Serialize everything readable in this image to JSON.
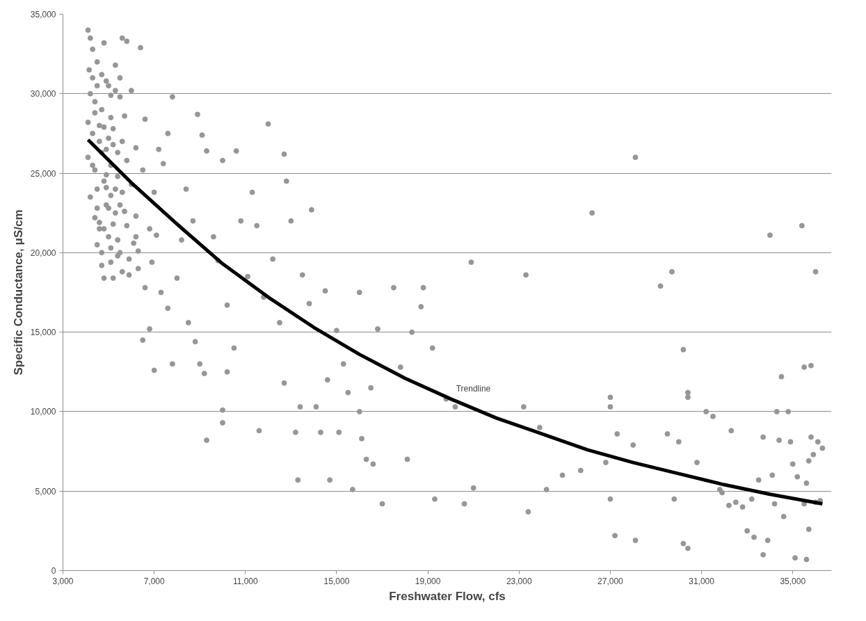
{
  "chart_data": {
    "type": "scatter",
    "xlabel": "Freshwater Flow, cfs",
    "ylabel": "Specific Conductance, μS/cm",
    "xlim": [
      3000,
      36700
    ],
    "ylim": [
      0,
      35000
    ],
    "xticks": [
      {
        "value": 3000,
        "label": "3,000"
      },
      {
        "value": 7000,
        "label": "7,000"
      },
      {
        "value": 11000,
        "label": "11,000"
      },
      {
        "value": 15000,
        "label": "15,000"
      },
      {
        "value": 19000,
        "label": "19,000"
      },
      {
        "value": 23000,
        "label": "23,000"
      },
      {
        "value": 27000,
        "label": "27,000"
      },
      {
        "value": 31000,
        "label": "31,000"
      },
      {
        "value": 35000,
        "label": "35,000"
      }
    ],
    "yticks": [
      0,
      {
        "value": 5000,
        "label": "5,000"
      },
      {
        "value": 10000,
        "label": "10,000"
      },
      {
        "value": 15000,
        "label": "15,000"
      },
      {
        "value": 20000,
        "label": "20,000"
      },
      {
        "value": 25000,
        "label": "25,000"
      },
      {
        "value": 30000,
        "label": "30,000"
      },
      {
        "value": 35000,
        "label": "35,000"
      }
    ],
    "grid": "y",
    "marker": "circle",
    "annotations": [
      "Trendline"
    ],
    "series": [
      {
        "color": "#969696",
        "x": [
          4300,
          4500,
          4700,
          4900,
          5100,
          5300,
          5500,
          4400,
          4600,
          4800,
          5000,
          5200,
          5400,
          5600,
          4300,
          4500,
          4700,
          4900,
          5100,
          5300,
          5500,
          5700,
          4400,
          4600,
          4800,
          5000,
          5200,
          5400,
          5900,
          6100,
          6300,
          4500,
          4700,
          4900,
          5100,
          5600,
          5900,
          6200,
          6600,
          7100,
          4100,
          4200,
          4300,
          4150,
          4500,
          4800,
          5000,
          5300,
          5600,
          5800,
          4200,
          4400,
          4700,
          5100,
          5500,
          4100,
          4300,
          4600,
          4900,
          5200,
          5700,
          6000,
          6400,
          6600,
          4100,
          4400,
          4800,
          5100,
          5400,
          5800,
          6200,
          4200,
          4500,
          4900,
          5300,
          5600,
          6000,
          6500,
          4600,
          5000,
          5400,
          5800,
          6200,
          4700,
          5100,
          5500,
          4800,
          5200,
          6300,
          6800,
          7000,
          7200,
          7600,
          7800,
          7400,
          6900,
          6500,
          6800,
          7000,
          7300,
          7600,
          7800,
          8000,
          8200,
          8400,
          8700,
          8900,
          9100,
          9300,
          8500,
          8800,
          9000,
          9200,
          9300,
          9600,
          9800,
          10000,
          10200,
          10000,
          10000,
          10200,
          10500,
          10600,
          10800,
          11100,
          11300,
          11500,
          11600,
          11800,
          12000,
          12200,
          12500,
          12700,
          12700,
          12800,
          13000,
          13200,
          13300,
          13400,
          13500,
          13800,
          13900,
          14100,
          14300,
          14500,
          14600,
          14700,
          15000,
          15100,
          15300,
          15500,
          15700,
          16000,
          16000,
          16100,
          16300,
          16500,
          16600,
          16800,
          17000,
          17500,
          17800,
          18100,
          18300,
          18700,
          18800,
          19200,
          19300,
          19800,
          20200,
          20600,
          20900,
          21000,
          23200,
          23300,
          23400,
          23900,
          24200,
          24900,
          25700,
          26200,
          26800,
          27000,
          27000,
          27000,
          27200,
          27300,
          28100,
          28100,
          28000,
          29200,
          29500,
          29700,
          29800,
          30000,
          30200,
          30200,
          30400,
          30400,
          30400,
          30800,
          31200,
          31500,
          31800,
          31900,
          32200,
          32300,
          32500,
          32800,
          33000,
          33200,
          33300,
          33500,
          33700,
          33700,
          33900,
          34000,
          34100,
          34200,
          34300,
          34400,
          34500,
          34600,
          34800,
          34900,
          35000,
          35100,
          35200,
          35500,
          35600,
          35400,
          35500,
          35600,
          35700,
          35700,
          35800,
          35800,
          35900,
          36000,
          36000,
          36100,
          36200,
          36300
        ],
        "values": [
          31000,
          30500,
          31200,
          30800,
          29900,
          30200,
          31000,
          28800,
          28000,
          27900,
          27200,
          26800,
          26300,
          27000,
          25500,
          24000,
          26300,
          24900,
          23600,
          24000,
          23000,
          22600,
          22200,
          21900,
          21500,
          22800,
          21800,
          19800,
          19600,
          20600,
          19000,
          20500,
          19200,
          24100,
          20300,
          18800,
          18600,
          21000,
          17800,
          21100,
          34000,
          33500,
          32800,
          31500,
          32000,
          33200,
          30500,
          31800,
          33500,
          33300,
          30000,
          29500,
          29000,
          28500,
          29800,
          28200,
          27500,
          27000,
          26500,
          27800,
          28600,
          30200,
          32900,
          28400,
          26000,
          25200,
          24500,
          25500,
          24800,
          25800,
          26600,
          23500,
          22800,
          23000,
          22500,
          23800,
          24300,
          25200,
          21500,
          21000,
          20800,
          21700,
          22300,
          20000,
          19400,
          20000,
          18400,
          18400,
          20100,
          21500,
          23800,
          26500,
          27500,
          29800,
          25600,
          19400,
          14500,
          15200,
          12600,
          17500,
          16500,
          13000,
          18400,
          20800,
          24000,
          22000,
          28700,
          27400,
          26400,
          15600,
          14400,
          13000,
          12400,
          8200,
          21000,
          19500,
          25800,
          16700,
          10100,
          9300,
          12500,
          14000,
          26400,
          22000,
          18500,
          23800,
          21700,
          8800,
          17200,
          28100,
          19600,
          15600,
          11800,
          26200,
          24500,
          22000,
          8700,
          5700,
          10300,
          18600,
          16800,
          22700,
          10300,
          8700,
          17600,
          12000,
          5700,
          15100,
          8700,
          13000,
          11200,
          5100,
          17500,
          10000,
          8300,
          7000,
          11500,
          6700,
          15200,
          4200,
          17800,
          12800,
          7000,
          15000,
          16600,
          17800,
          14000,
          4500,
          10800,
          10300,
          4200,
          19400,
          5200,
          10300,
          18600,
          3700,
          9000,
          5100,
          6000,
          6300,
          22500,
          6800,
          10900,
          10300,
          4500,
          2200,
          8600,
          26000,
          1900,
          7900,
          17900,
          8600,
          18800,
          4500,
          8100,
          13900,
          1700,
          1400,
          11200,
          10900,
          6800,
          10000,
          9700,
          5100,
          4900,
          4100,
          8800,
          4300,
          4000,
          2500,
          4500,
          2100,
          5700,
          8400,
          1000,
          1900,
          21100,
          6000,
          4200,
          10000,
          8200,
          12200,
          3400,
          10000,
          8100,
          6700,
          800,
          5900,
          4200,
          700,
          21700,
          12800,
          5500,
          2600,
          6900,
          12900,
          8400,
          7300,
          18800,
          4300,
          8100,
          4400,
          7700
        ]
      },
      {
        "type": "line",
        "color": "#000000",
        "line_style": "solid",
        "marker": "none",
        "x": [
          4100,
          6000,
          8000,
          10000,
          12000,
          14000,
          16000,
          18000,
          20000,
          22000,
          24000,
          26000,
          28000,
          30000,
          32000,
          34000,
          36300
        ],
        "values": [
          27100,
          24400,
          21800,
          19300,
          17200,
          15300,
          13600,
          12100,
          10800,
          9600,
          8600,
          7600,
          6800,
          6100,
          5400,
          4800,
          4200
        ]
      }
    ]
  }
}
